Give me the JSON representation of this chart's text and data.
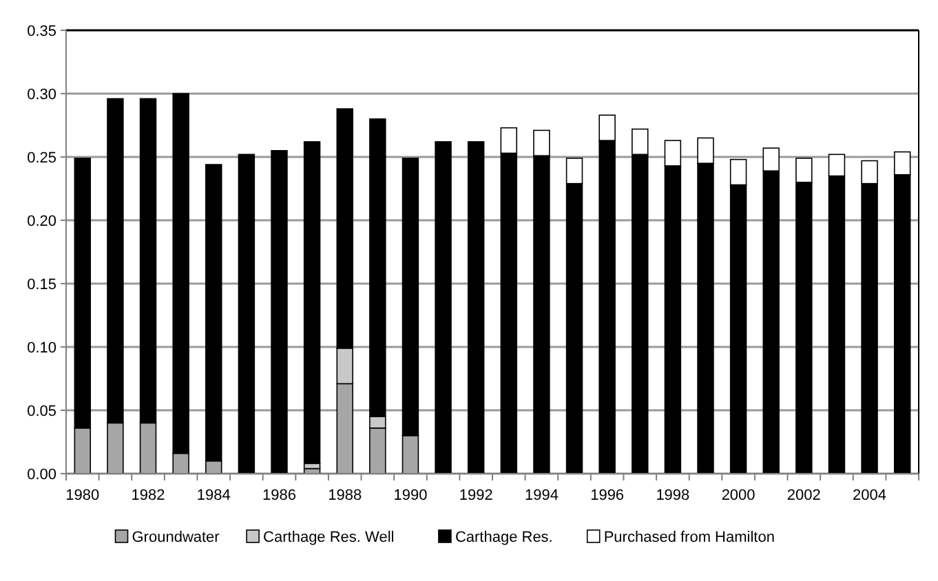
{
  "chart_data": {
    "type": "bar",
    "stacked": true,
    "categories": [
      "1980",
      null,
      "1982",
      null,
      "1984",
      null,
      "1986",
      null,
      "1988",
      null,
      "1990",
      null,
      "1992",
      null,
      "1994",
      null,
      "1996",
      null,
      "1998",
      null,
      "2000",
      null,
      "2002",
      null,
      "2004",
      null
    ],
    "series": [
      {
        "name": "Groundwater",
        "color": "#a6a6a6",
        "values": [
          0.036,
          0.04,
          0.04,
          0.016,
          0.01,
          0,
          0,
          0.004,
          0.071,
          0.036,
          0.03,
          0,
          0,
          0,
          0,
          0,
          0,
          0,
          0,
          0,
          0,
          0,
          0,
          0,
          0,
          0
        ]
      },
      {
        "name": "Carthage Res. Well",
        "color": "#c8c8c8",
        "values": [
          0,
          0,
          0,
          0,
          0,
          0,
          0,
          0.004,
          0.028,
          0.009,
          0,
          0,
          0,
          0,
          0,
          0,
          0,
          0,
          0,
          0,
          0,
          0,
          0,
          0,
          0,
          0
        ]
      },
      {
        "name": "Carthage Res.",
        "color": "#000000",
        "values": [
          0.213,
          0.256,
          0.256,
          0.284,
          0.234,
          0.252,
          0.255,
          0.254,
          0.189,
          0.235,
          0.219,
          0.262,
          0.262,
          0.253,
          0.251,
          0.229,
          0.263,
          0.252,
          0.243,
          0.245,
          0.228,
          0.239,
          0.23,
          0.235,
          0.229,
          0.236
        ]
      },
      {
        "name": "Purchased from Hamilton",
        "color": "#ffffff",
        "values": [
          0,
          0,
          0,
          0,
          0,
          0,
          0,
          0,
          0,
          0,
          0,
          0,
          0,
          0.02,
          0.02,
          0.02,
          0.02,
          0.02,
          0.02,
          0.02,
          0.02,
          0.018,
          0.019,
          0.017,
          0.018,
          0.018
        ]
      }
    ],
    "ylim": [
      0,
      0.35
    ],
    "yticks": [
      {
        "value": 0,
        "label": "0.00"
      },
      {
        "value": 0.05,
        "label": "0.05"
      },
      {
        "value": 0.1,
        "label": "0.10"
      },
      {
        "value": 0.15,
        "label": "0.15"
      },
      {
        "value": 0.2,
        "label": "0.20"
      },
      {
        "value": 0.25,
        "label": "0.25"
      },
      {
        "value": 0.3,
        "label": "0.30"
      },
      {
        "value": 0.35,
        "label": "0.35"
      }
    ],
    "grid": "y",
    "legend": "bottom"
  }
}
